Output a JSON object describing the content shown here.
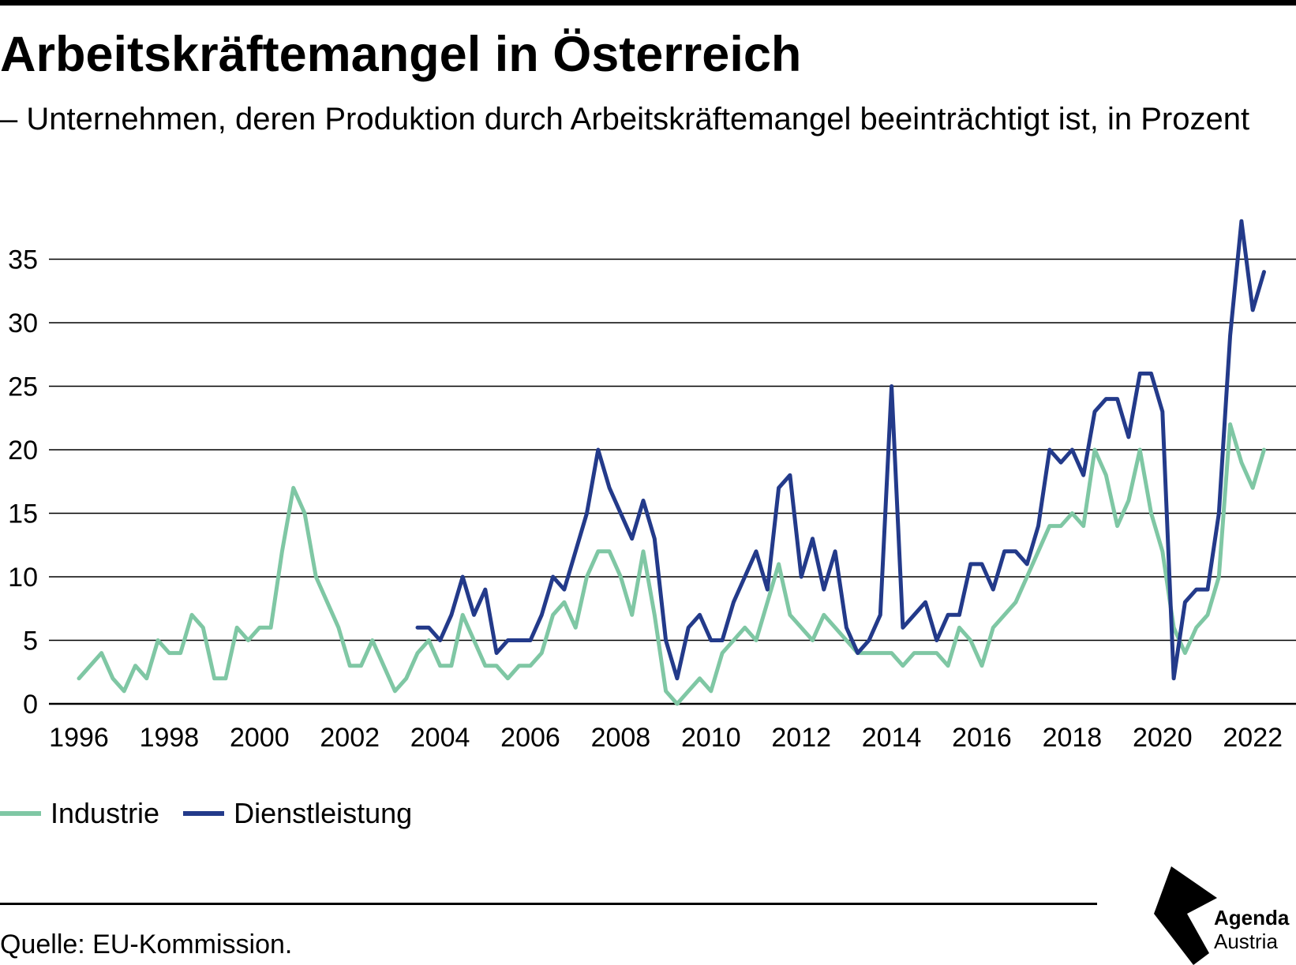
{
  "title": "Arbeitskräftemangel in Österreich",
  "subtitle": "– Unternehmen, deren Produktion durch Arbeitskräftemangel beeinträchtigt ist, in Prozent",
  "source": "Quelle: EU-Kommission.",
  "logo": {
    "line1": "Agenda",
    "line2": "Austria"
  },
  "colors": {
    "industrie": "#7fc7a4",
    "dienstleistung": "#233a8a",
    "grid": "#000000"
  },
  "chart_data": {
    "type": "line",
    "title": "Arbeitskräftemangel in Österreich",
    "xlabel": "",
    "ylabel": "",
    "xlim": [
      1996,
      2022.7
    ],
    "ylim": [
      0,
      37
    ],
    "yticks": [
      0,
      5,
      10,
      15,
      20,
      25,
      30,
      35
    ],
    "xticks": [
      1996,
      1998,
      2000,
      2002,
      2004,
      2006,
      2008,
      2010,
      2012,
      2014,
      2016,
      2018,
      2020,
      2022
    ],
    "grid": true,
    "legend_position": "bottom-left",
    "x_start": "1996-Q1",
    "x_step": "quarter",
    "series": [
      {
        "name": "Industrie",
        "color": "#7fc7a4",
        "values": [
          2,
          3,
          4,
          2,
          1,
          3,
          2,
          5,
          4,
          4,
          7,
          6,
          2,
          2,
          6,
          5,
          6,
          6,
          12,
          17,
          15,
          10,
          8,
          6,
          3,
          3,
          5,
          3,
          1,
          2,
          4,
          5,
          3,
          3,
          7,
          5,
          3,
          3,
          2,
          3,
          3,
          4,
          7,
          8,
          6,
          10,
          12,
          12,
          10,
          7,
          12,
          7,
          1,
          0,
          1,
          2,
          1,
          4,
          5,
          6,
          5,
          8,
          11,
          7,
          6,
          5,
          7,
          6,
          5,
          4,
          4,
          4,
          4,
          3,
          4,
          4,
          4,
          3,
          6,
          5,
          3,
          6,
          7,
          8,
          10,
          12,
          14,
          14,
          15,
          14,
          20,
          18,
          14,
          16,
          20,
          15,
          12,
          6,
          4,
          6,
          7,
          10,
          22,
          19,
          17,
          20
        ]
      },
      {
        "name": "Dienstleistung",
        "color": "#233a8a",
        "x_start": "2003-Q3",
        "values": [
          6,
          6,
          5,
          7,
          10,
          7,
          9,
          4,
          5,
          5,
          5,
          7,
          10,
          9,
          12,
          15,
          20,
          17,
          15,
          13,
          16,
          13,
          5,
          2,
          6,
          7,
          5,
          5,
          8,
          10,
          12,
          9,
          17,
          18,
          10,
          13,
          9,
          12,
          6,
          4,
          5,
          7,
          25,
          6,
          7,
          8,
          5,
          7,
          7,
          11,
          11,
          9,
          12,
          12,
          11,
          14,
          20,
          19,
          20,
          18,
          23,
          24,
          24,
          21,
          26,
          26,
          23,
          2,
          8,
          9,
          9,
          15,
          29,
          38,
          31,
          34
        ]
      }
    ]
  }
}
